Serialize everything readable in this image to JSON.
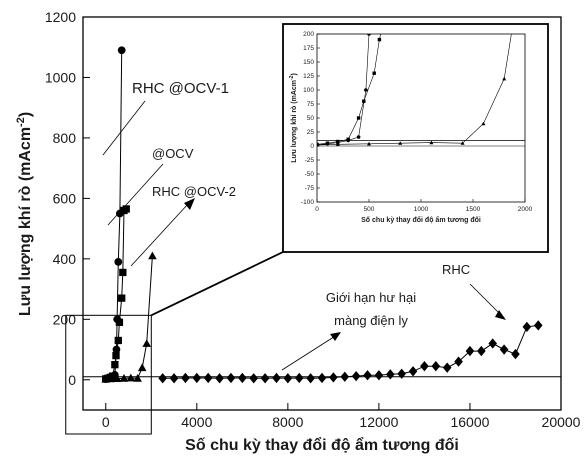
{
  "chart_data": [
    {
      "type": "scatter",
      "title": "",
      "xlabel": "Số chu kỳ thay đổi độ ẩm tương đối",
      "ylabel": "Lưu lượng khí rò (mAcm",
      "ylabel_sup": "-2",
      "ylabel_close": ")",
      "xlim": [
        -1000,
        20000
      ],
      "ylim": [
        -100,
        1200
      ],
      "xticks": [
        0,
        4000,
        8000,
        12000,
        16000,
        20000
      ],
      "yticks": [
        0,
        200,
        400,
        600,
        800,
        1000,
        1200
      ],
      "threshold": 10,
      "series": [
        {
          "name": "RHC @OCV-1",
          "marker": "circle",
          "points": [
            [
              0,
              2
            ],
            [
              100,
              4
            ],
            [
              200,
              6
            ],
            [
              300,
              10
            ],
            [
              400,
              16
            ],
            [
              470,
              100
            ],
            [
              500,
              200
            ],
            [
              550,
              390
            ],
            [
              620,
              550
            ],
            [
              700,
              1090
            ]
          ]
        },
        {
          "name": "@OCV",
          "marker": "square",
          "points": [
            [
              0,
              3
            ],
            [
              100,
              5
            ],
            [
              200,
              8
            ],
            [
              300,
              12
            ],
            [
              400,
              50
            ],
            [
              450,
              80
            ],
            [
              550,
              130
            ],
            [
              600,
              190
            ],
            [
              700,
              270
            ],
            [
              750,
              355
            ],
            [
              800,
              560
            ],
            [
              900,
              565
            ]
          ]
        },
        {
          "name": "RHC @OCV-2",
          "marker": "triangle",
          "points": [
            [
              0,
              2
            ],
            [
              200,
              3
            ],
            [
              500,
              4
            ],
            [
              800,
              5
            ],
            [
              1100,
              6
            ],
            [
              1400,
              5
            ],
            [
              1600,
              40
            ],
            [
              1800,
              120
            ],
            [
              2050,
              410
            ]
          ]
        },
        {
          "name": "RHC",
          "marker": "diamond",
          "points": [
            [
              2500,
              5
            ],
            [
              3000,
              5
            ],
            [
              3500,
              6
            ],
            [
              4000,
              6
            ],
            [
              4500,
              6
            ],
            [
              5000,
              5
            ],
            [
              5500,
              6
            ],
            [
              6000,
              6
            ],
            [
              6500,
              5
            ],
            [
              7000,
              5
            ],
            [
              7500,
              6
            ],
            [
              8000,
              5
            ],
            [
              8500,
              6
            ],
            [
              9000,
              5
            ],
            [
              9500,
              6
            ],
            [
              10000,
              8
            ],
            [
              10500,
              10
            ],
            [
              11000,
              12
            ],
            [
              11500,
              15
            ],
            [
              12000,
              15
            ],
            [
              12500,
              18
            ],
            [
              13000,
              20
            ],
            [
              13500,
              28
            ],
            [
              14000,
              45
            ],
            [
              14500,
              45
            ],
            [
              15000,
              40
            ],
            [
              15500,
              60
            ],
            [
              16000,
              95
            ],
            [
              16500,
              95
            ],
            [
              17000,
              120
            ],
            [
              17500,
              100
            ],
            [
              18000,
              85
            ],
            [
              18500,
              175
            ],
            [
              19000,
              180
            ]
          ]
        }
      ],
      "annotations": {
        "rhc_ocv1": "RHC @OCV-1",
        "ocv": "@OCV",
        "rhc_ocv2": "RHC @OCV-2",
        "limit_line1": "Giới hạn hư hại",
        "limit_line2": "màng điện ly",
        "rhc": "RHC"
      }
    },
    {
      "type": "scatter",
      "title": "",
      "xlabel": "Số chu kỳ thay đổi độ ẩm tương đối",
      "ylabel": "Lưu lượng khí rò (mAcm",
      "ylabel_sup": "-2",
      "ylabel_close": ")",
      "xlim": [
        0,
        2000
      ],
      "ylim": [
        -100,
        200
      ],
      "xticks": [
        0,
        500,
        1000,
        1500,
        2000
      ],
      "yticks": [
        -100,
        -75,
        -50,
        -25,
        0,
        25,
        50,
        75,
        100,
        125,
        150,
        175,
        200
      ],
      "threshold": 10
    }
  ]
}
